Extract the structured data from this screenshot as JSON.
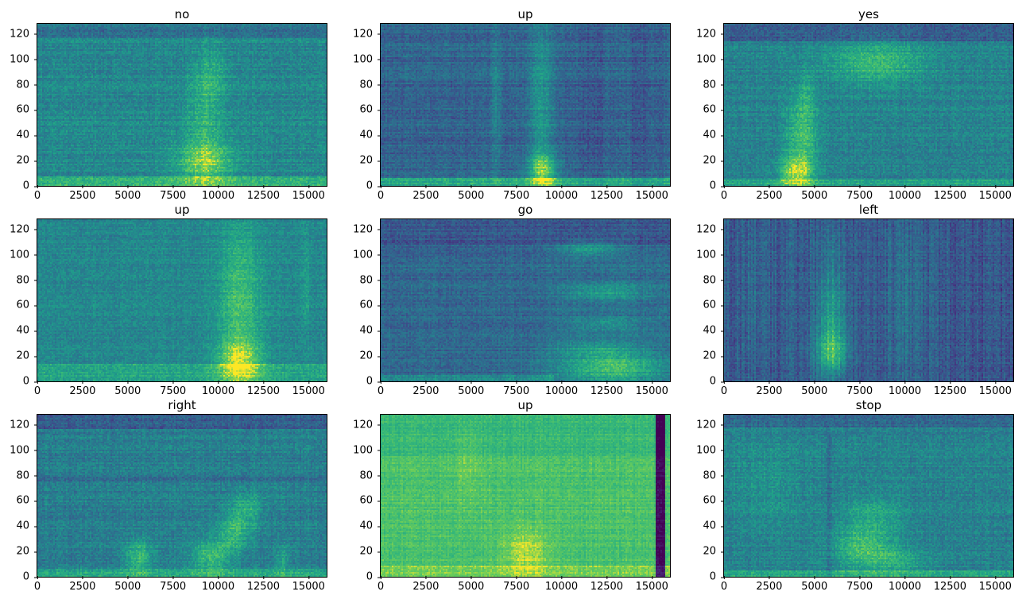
{
  "figure": {
    "background_color": "#ffffff",
    "text_color": "#000000",
    "axes_border_color": "#000000"
  },
  "chart_data": {
    "type": "heatmap",
    "chart_kind": "spectrogram-grid",
    "description": "3x3 grid of audio spectrograms (viridis colormap) of speech-command samples, titled by spoken word",
    "grid": [
      3,
      3
    ],
    "colormap": "viridis",
    "xlim": [
      0,
      16000
    ],
    "ylim": [
      0,
      128
    ],
    "xticks": [
      0,
      2500,
      5000,
      7500,
      10000,
      12500,
      15000
    ],
    "yticks": [
      0,
      20,
      40,
      60,
      80,
      100,
      120
    ],
    "colormap_stops": [
      [
        68,
        1,
        84
      ],
      [
        72,
        40,
        120
      ],
      [
        62,
        74,
        137
      ],
      [
        49,
        104,
        142
      ],
      [
        38,
        130,
        142
      ],
      [
        31,
        158,
        137
      ],
      [
        53,
        183,
        121
      ],
      [
        109,
        205,
        89
      ],
      [
        253,
        231,
        37
      ]
    ],
    "plots": [
      {
        "title": "no",
        "seed": 11,
        "base": 0.52,
        "noise": 0.09,
        "row_noise": 0.1,
        "col_noise": 0.05,
        "features": [
          {
            "type": "rect",
            "x0": 0,
            "x1": 1,
            "y0": 0,
            "y1": 0.05,
            "v": 0.22
          },
          {
            "type": "rect",
            "x0": 0,
            "x1": 1,
            "y0": 0.92,
            "y1": 1,
            "v": -0.1
          },
          {
            "type": "blob",
            "x": 0.58,
            "y": 0.14,
            "rx": 0.1,
            "ry": 0.13,
            "v": 0.34
          },
          {
            "type": "blob",
            "x": 0.58,
            "y": 0.45,
            "rx": 0.065,
            "ry": 0.3,
            "v": 0.18
          },
          {
            "type": "blob",
            "x": 0.61,
            "y": 0.7,
            "rx": 0.055,
            "ry": 0.15,
            "v": 0.12
          }
        ]
      },
      {
        "title": "up",
        "seed": 22,
        "base": 0.36,
        "noise": 0.08,
        "row_noise": 0.12,
        "col_noise": 0.06,
        "features": [
          {
            "type": "rect",
            "x0": 0,
            "x1": 1,
            "y0": 0,
            "y1": 0.04,
            "v": 0.3
          },
          {
            "type": "blob",
            "x": 0.555,
            "y": 0.5,
            "rx": 0.04,
            "ry": 0.55,
            "v": 0.24
          },
          {
            "type": "blob",
            "x": 0.56,
            "y": 0.1,
            "rx": 0.05,
            "ry": 0.1,
            "v": 0.42
          },
          {
            "type": "blob",
            "x": 0.4,
            "y": 0.5,
            "rx": 0.02,
            "ry": 0.5,
            "v": 0.14
          },
          {
            "type": "rect",
            "x0": 0.68,
            "x1": 0.77,
            "y0": 0,
            "y1": 1,
            "v": -0.05
          },
          {
            "type": "rect",
            "x0": 0.87,
            "x1": 0.92,
            "y0": 0,
            "y1": 1,
            "v": -0.05
          }
        ]
      },
      {
        "title": "yes",
        "seed": 33,
        "base": 0.5,
        "noise": 0.09,
        "row_noise": 0.09,
        "col_noise": 0.05,
        "features": [
          {
            "type": "rect",
            "x0": 0,
            "x1": 1,
            "y0": 0.9,
            "y1": 1,
            "v": -0.18
          },
          {
            "type": "rect",
            "x0": 0,
            "x1": 1,
            "y0": 0,
            "y1": 0.03,
            "v": 0.15
          },
          {
            "type": "blob",
            "x": 0.25,
            "y": 0.08,
            "rx": 0.06,
            "ry": 0.1,
            "v": 0.42
          },
          {
            "type": "blob",
            "x": 0.27,
            "y": 0.3,
            "rx": 0.055,
            "ry": 0.2,
            "v": 0.28
          },
          {
            "type": "blob",
            "x": 0.28,
            "y": 0.55,
            "rx": 0.04,
            "ry": 0.14,
            "v": 0.15
          },
          {
            "type": "blob",
            "x": 0.53,
            "y": 0.76,
            "rx": 0.17,
            "ry": 0.13,
            "v": 0.26
          }
        ]
      },
      {
        "title": "up",
        "seed": 44,
        "base": 0.52,
        "noise": 0.08,
        "row_noise": 0.07,
        "col_noise": 0.04,
        "features": [
          {
            "type": "rect",
            "x0": 0,
            "x1": 1,
            "y0": 0,
            "y1": 0.1,
            "v": 0.14
          },
          {
            "type": "blob",
            "x": 0.7,
            "y": 0.5,
            "rx": 0.075,
            "ry": 0.5,
            "v": 0.26
          },
          {
            "type": "blob",
            "x": 0.7,
            "y": 0.12,
            "rx": 0.08,
            "ry": 0.14,
            "v": 0.32
          },
          {
            "type": "blob",
            "x": 0.93,
            "y": 0.6,
            "rx": 0.013,
            "ry": 0.4,
            "v": 0.12
          }
        ]
      },
      {
        "title": "go",
        "seed": 55,
        "base": 0.4,
        "noise": 0.08,
        "row_noise": 0.1,
        "col_noise": 0.05,
        "features": [
          {
            "type": "rect",
            "x0": 0,
            "x1": 1,
            "y0": 0.85,
            "y1": 1,
            "v": -0.1
          },
          {
            "type": "rect",
            "x0": 0,
            "x1": 0.57,
            "y0": 0,
            "y1": 0.85,
            "v": -0.03
          },
          {
            "type": "rect",
            "x0": 0,
            "x1": 0.6,
            "y0": 0,
            "y1": 0.03,
            "v": 0.15
          },
          {
            "type": "blob",
            "x": 0.72,
            "y": 0.82,
            "rx": 0.1,
            "ry": 0.05,
            "v": 0.24
          },
          {
            "type": "blob",
            "x": 0.78,
            "y": 0.55,
            "rx": 0.14,
            "ry": 0.055,
            "v": 0.22
          },
          {
            "type": "blob",
            "x": 0.78,
            "y": 0.35,
            "rx": 0.14,
            "ry": 0.045,
            "v": 0.18
          },
          {
            "type": "blob",
            "x": 0.75,
            "y": 0.2,
            "rx": 0.15,
            "ry": 0.05,
            "v": 0.18
          },
          {
            "type": "blob",
            "x": 0.8,
            "y": 0.08,
            "rx": 0.18,
            "ry": 0.09,
            "v": 0.4
          }
        ]
      },
      {
        "title": "left",
        "seed": 66,
        "base": 0.32,
        "noise": 0.08,
        "row_noise": 0.06,
        "col_noise": 0.14,
        "features": [
          {
            "type": "blob",
            "x": 0.37,
            "y": 0.18,
            "rx": 0.055,
            "ry": 0.16,
            "v": 0.48
          },
          {
            "type": "blob",
            "x": 0.37,
            "y": 0.45,
            "rx": 0.05,
            "ry": 0.18,
            "v": 0.24
          },
          {
            "type": "blob",
            "x": 0.37,
            "y": 0.75,
            "rx": 0.045,
            "ry": 0.25,
            "v": 0.12
          },
          {
            "type": "blob",
            "x": 0.63,
            "y": 0.5,
            "rx": 0.06,
            "ry": 0.55,
            "v": 0.1
          },
          {
            "type": "blob",
            "x": 0.1,
            "y": 0.5,
            "rx": 0.03,
            "ry": 0.5,
            "v": 0.07
          },
          {
            "type": "rect",
            "x0": 0.78,
            "x1": 1,
            "y0": 0,
            "y1": 1,
            "v": -0.03
          }
        ]
      },
      {
        "title": "right",
        "seed": 77,
        "base": 0.48,
        "noise": 0.09,
        "row_noise": 0.09,
        "col_noise": 0.06,
        "features": [
          {
            "type": "rect",
            "x0": 0,
            "x1": 1,
            "y0": 0.92,
            "y1": 1,
            "v": -0.15
          },
          {
            "type": "rect",
            "x0": 0,
            "x1": 1,
            "y0": 0.59,
            "y1": 0.615,
            "v": -0.12
          },
          {
            "type": "rect",
            "x0": 0,
            "x1": 1,
            "y0": 0,
            "y1": 0.04,
            "v": 0.18
          },
          {
            "type": "blob",
            "x": 0.35,
            "y": 0.12,
            "rx": 0.05,
            "ry": 0.1,
            "v": 0.28
          },
          {
            "type": "blob",
            "x": 0.6,
            "y": 0.12,
            "rx": 0.07,
            "ry": 0.1,
            "v": 0.3
          },
          {
            "type": "blob",
            "x": 0.68,
            "y": 0.28,
            "rx": 0.06,
            "ry": 0.12,
            "v": 0.26
          },
          {
            "type": "blob",
            "x": 0.73,
            "y": 0.42,
            "rx": 0.05,
            "ry": 0.1,
            "v": 0.2
          },
          {
            "type": "blob",
            "x": 0.85,
            "y": 0.1,
            "rx": 0.03,
            "ry": 0.08,
            "v": 0.16
          }
        ]
      },
      {
        "title": "up",
        "seed": 88,
        "base": 0.8,
        "noise": 0.05,
        "row_noise": 0.06,
        "col_noise": 0.05,
        "features": [
          {
            "type": "rect",
            "x0": 0.952,
            "x1": 0.986,
            "y0": 0,
            "y1": 1,
            "v": -0.78
          },
          {
            "type": "rect",
            "x0": 0,
            "x1": 1,
            "y0": 0.75,
            "y1": 1,
            "v": -0.05
          },
          {
            "type": "rect",
            "x0": 0,
            "x1": 1,
            "y0": 0,
            "y1": 0.06,
            "v": 0.08
          },
          {
            "type": "blob",
            "x": 0.5,
            "y": 0.15,
            "rx": 0.08,
            "ry": 0.14,
            "v": 0.15
          },
          {
            "type": "blob",
            "x": 0.3,
            "y": 0.7,
            "rx": 0.05,
            "ry": 0.25,
            "v": 0.06
          }
        ]
      },
      {
        "title": "stop",
        "seed": 99,
        "base": 0.5,
        "noise": 0.09,
        "row_noise": 0.08,
        "col_noise": 0.05,
        "features": [
          {
            "type": "rect",
            "x0": 0,
            "x1": 1,
            "y0": 0.93,
            "y1": 1,
            "v": -0.12
          },
          {
            "type": "rect",
            "x0": 0,
            "x1": 1,
            "y0": 0,
            "y1": 0.03,
            "v": 0.15
          },
          {
            "type": "blob",
            "x": 0.15,
            "y": 0.55,
            "rx": 0.13,
            "ry": 0.3,
            "v": 0.07
          },
          {
            "type": "blob",
            "x": 0.48,
            "y": 0.18,
            "rx": 0.1,
            "ry": 0.13,
            "v": 0.28
          },
          {
            "type": "blob",
            "x": 0.52,
            "y": 0.38,
            "rx": 0.1,
            "ry": 0.12,
            "v": 0.16
          },
          {
            "type": "blob",
            "x": 0.6,
            "y": 0.1,
            "rx": 0.1,
            "ry": 0.08,
            "v": 0.18
          },
          {
            "type": "rect",
            "x0": 0.355,
            "x1": 0.372,
            "y0": 0,
            "y1": 0.9,
            "v": -0.08
          }
        ]
      }
    ]
  }
}
